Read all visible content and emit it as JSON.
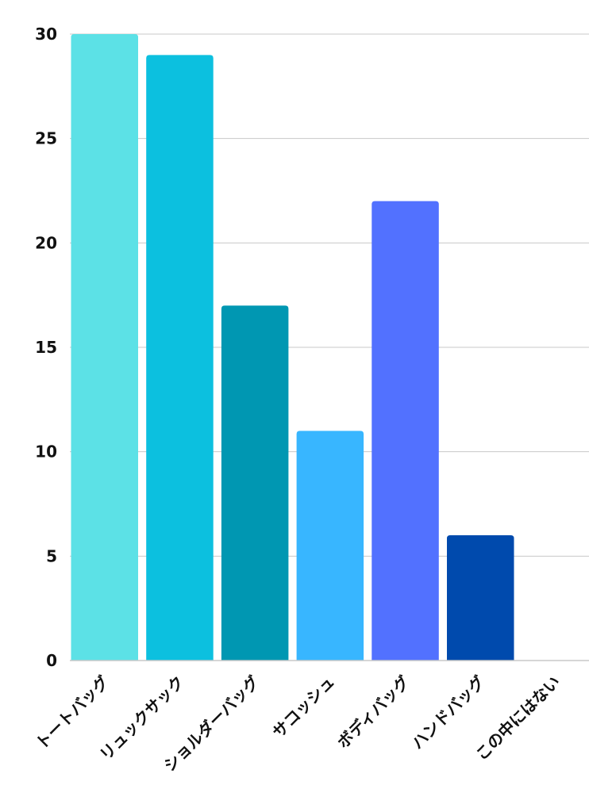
{
  "chart_data": {
    "type": "bar",
    "categories": [
      "トートバッグ",
      "リュックサック",
      "ショルダーバッグ",
      "サコッシュ",
      "ボディバッグ",
      "ハンドバッグ",
      "この中にはない"
    ],
    "values": [
      30,
      29,
      17,
      11,
      22,
      6,
      0
    ],
    "colors": [
      "#5ce1e6",
      "#0cc0df",
      "#0097b2",
      "#38b6ff",
      "#5271ff",
      "#004aad",
      "#5ce1e6"
    ],
    "title": "",
    "xlabel": "",
    "ylabel": "",
    "ylim": [
      0,
      30
    ],
    "yticks": [
      0,
      5,
      10,
      15,
      20,
      25,
      30
    ],
    "grid": true,
    "legend": "none"
  }
}
